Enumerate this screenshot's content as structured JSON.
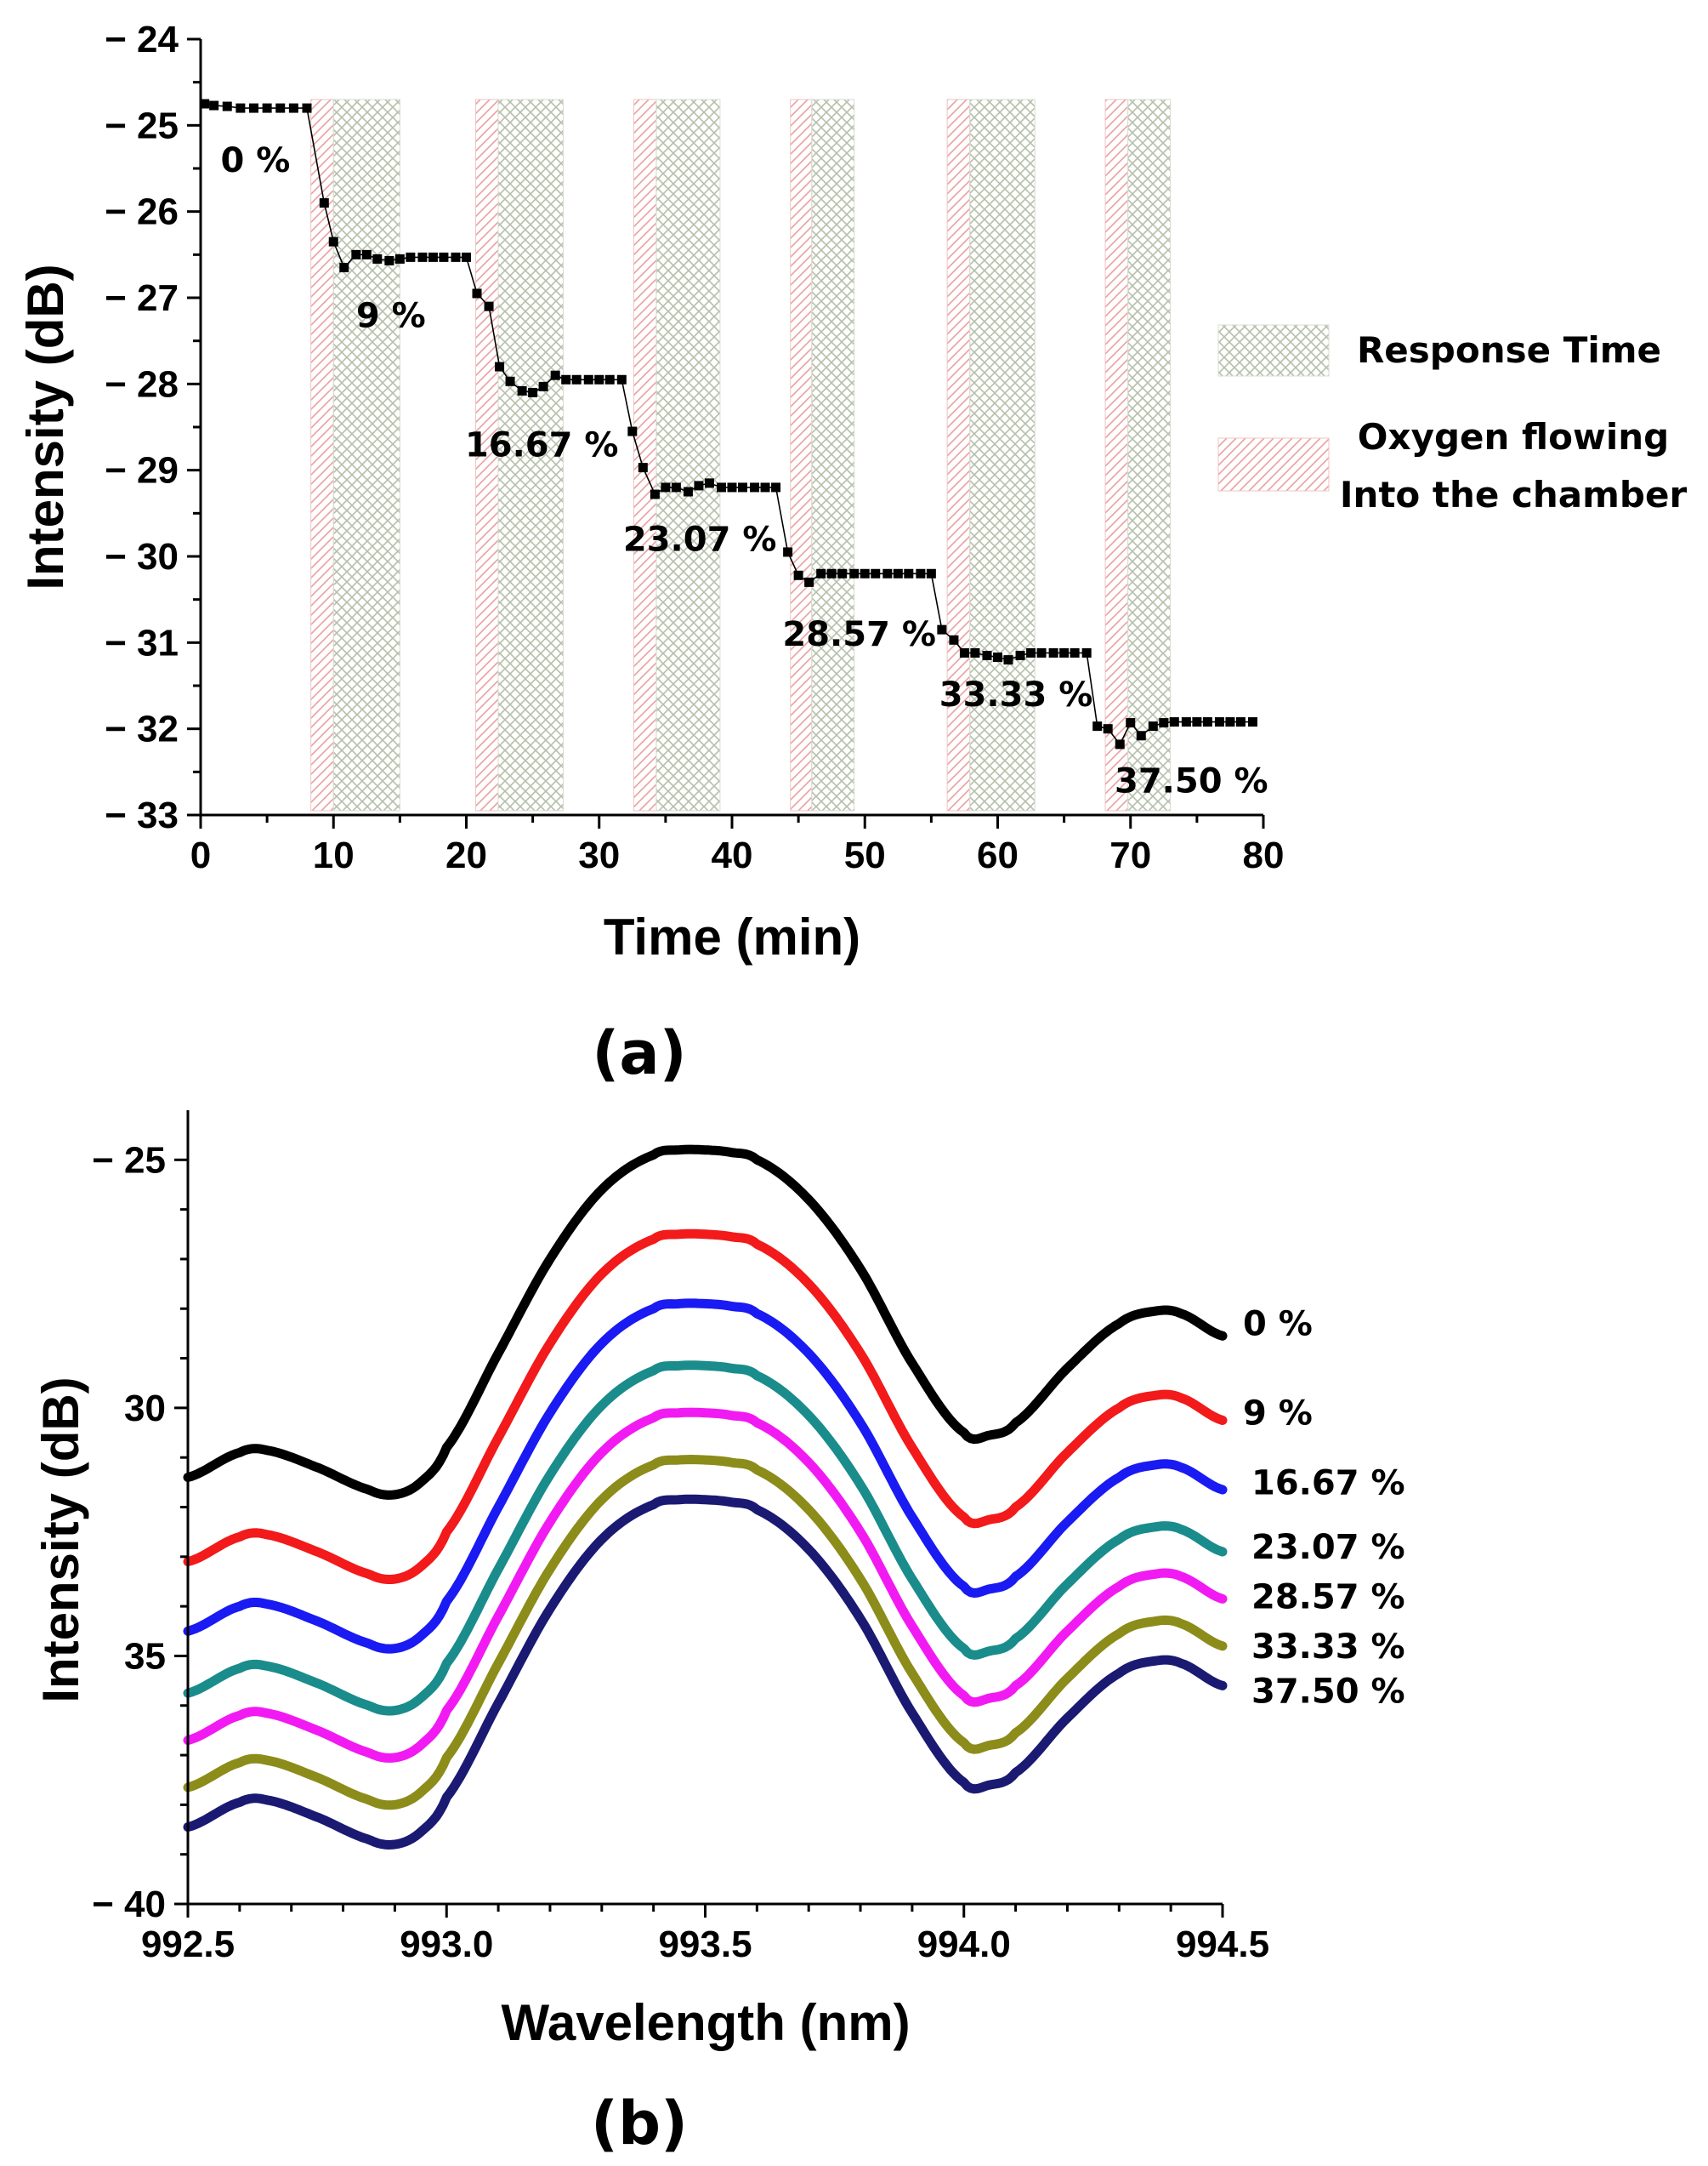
{
  "chart_data": [
    {
      "id": "a",
      "type": "line",
      "panel_label": "(a)",
      "xlabel": "Time (min)",
      "ylabel": "Intensity (dB)",
      "xlim": [
        0,
        80
      ],
      "ylim": [
        -33,
        -24
      ],
      "xticks": [
        0,
        10,
        20,
        30,
        40,
        50,
        60,
        70,
        80
      ],
      "xtick_labels": [
        "0",
        "10",
        "20",
        "30",
        "40",
        "50",
        "60",
        "70",
        "80"
      ],
      "yticks": [
        -24,
        -25,
        -26,
        -27,
        -28,
        -29,
        -30,
        -31,
        -32,
        -33
      ],
      "ytick_labels": [
        "− 24",
        "− 25",
        "− 26",
        "− 27",
        "− 28",
        "− 29",
        "− 30",
        "− 31",
        "− 32",
        "− 33"
      ],
      "series": [
        {
          "name": "Intensity",
          "color": "#000000",
          "marker": "square",
          "x": [
            0.3,
            1,
            2,
            3,
            4,
            5,
            6,
            7,
            8,
            9.3,
            10,
            10.8,
            11.7,
            12.5,
            13.3,
            14.2,
            15,
            15.8,
            16.7,
            17.5,
            18.3,
            19.2,
            20,
            20.8,
            21.7,
            22.5,
            23.3,
            24.2,
            25,
            25.8,
            26.7,
            27.5,
            28.3,
            29.2,
            30,
            30.8,
            31.7,
            32.5,
            33.3,
            34.2,
            35,
            35.8,
            36.7,
            37.5,
            38.3,
            39.2,
            40,
            40.8,
            41.7,
            42.5,
            43.3,
            44.2,
            45,
            45.8,
            46.7,
            47.5,
            48.3,
            49.2,
            50,
            50.8,
            51.7,
            52.5,
            53.3,
            54.2,
            55,
            55.8,
            56.7,
            57.5,
            58.3,
            59.2,
            60,
            60.8,
            61.7,
            62.5,
            63.3,
            64.2,
            65,
            65.8,
            66.7,
            67.5,
            68.3,
            69.2,
            70,
            70.8,
            71.7,
            72.5,
            73.3,
            74.2,
            75,
            75.8,
            76.7,
            77.5,
            78.3,
            79.2
          ],
          "y": [
            -24.75,
            -24.77,
            -24.78,
            -24.8,
            -24.8,
            -24.8,
            -24.8,
            -24.8,
            -24.8,
            -25.9,
            -26.35,
            -26.65,
            -26.5,
            -26.5,
            -26.55,
            -26.57,
            -26.55,
            -26.53,
            -26.53,
            -26.53,
            -26.53,
            -26.53,
            -26.53,
            -26.95,
            -27.1,
            -27.8,
            -27.97,
            -28.08,
            -28.1,
            -28.03,
            -27.9,
            -27.95,
            -27.95,
            -27.95,
            -27.95,
            -27.95,
            -27.95,
            -28.55,
            -28.97,
            -29.28,
            -29.2,
            -29.2,
            -29.25,
            -29.18,
            -29.15,
            -29.2,
            -29.2,
            -29.2,
            -29.2,
            -29.2,
            -29.2,
            -29.95,
            -30.22,
            -30.3,
            -30.2,
            -30.2,
            -30.2,
            -30.2,
            -30.2,
            -30.2,
            -30.2,
            -30.2,
            -30.2,
            -30.2,
            -30.2,
            -30.85,
            -30.97,
            -31.12,
            -31.12,
            -31.15,
            -31.17,
            -31.2,
            -31.15,
            -31.12,
            -31.12,
            -31.12,
            -31.12,
            -31.12,
            -31.12,
            -31.97,
            -32.0,
            -32.18,
            -31.93,
            -32.08,
            -31.97,
            -31.93,
            -31.92,
            -31.92,
            -31.92,
            -31.92,
            -31.92,
            -31.92,
            -31.92,
            -31.92
          ]
        }
      ],
      "oxygen_flow_bands": [
        [
          8.3,
          10.0
        ],
        [
          20.7,
          22.4
        ],
        [
          32.6,
          34.3
        ],
        [
          44.4,
          46.0
        ],
        [
          56.2,
          57.9
        ],
        [
          68.1,
          69.8
        ]
      ],
      "response_time_bands": [
        [
          10.0,
          15.0
        ],
        [
          22.4,
          27.3
        ],
        [
          34.3,
          39.1
        ],
        [
          46.0,
          49.2
        ],
        [
          57.9,
          62.8
        ],
        [
          69.8,
          73.0
        ]
      ],
      "legend": [
        {
          "label_lines": [
            "Response Time"
          ],
          "pattern": "crosshatch",
          "color": "#b5bfa9"
        },
        {
          "label_lines": [
            "Oxygen flowing",
            "Into the chamber"
          ],
          "pattern": "diagonal",
          "color": "#e9a0a0"
        }
      ],
      "annotations": [
        {
          "text": "0 %",
          "x": 1.5,
          "y": -25.4
        },
        {
          "text": "9 %",
          "x": 11.7,
          "y": -27.2
        },
        {
          "text": "16.67 %",
          "x": 19.9,
          "y": -28.7
        },
        {
          "text": "23.07 %",
          "x": 31.8,
          "y": -29.8
        },
        {
          "text": "28.57 %",
          "x": 43.8,
          "y": -30.9
        },
        {
          "text": "33.33 %",
          "x": 55.6,
          "y": -31.6
        },
        {
          "text": "37.50 %",
          "x": 68.8,
          "y": -32.6
        }
      ]
    },
    {
      "id": "b",
      "type": "line",
      "panel_label": "(b)",
      "xlabel": "Wavelength (nm)",
      "ylabel": "Intensity (dB)",
      "xlim": [
        992.5,
        994.5
      ],
      "ylim": [
        -40,
        -24
      ],
      "xticks": [
        992.5,
        993.0,
        993.5,
        994.0,
        994.5
      ],
      "xtick_labels": [
        "992.5",
        "993.0",
        "993.5",
        "994.0",
        "994.5"
      ],
      "yticks": [
        -25,
        -30,
        -35,
        -40
      ],
      "ytick_labels": [
        "− 25",
        "30",
        "35",
        "− 40"
      ],
      "series": [
        {
          "name": "0 %",
          "color": "#000000",
          "offset": -24.8
        },
        {
          "name": "9 %",
          "color": "#f21a1a",
          "offset": -26.5
        },
        {
          "name": "16.67 %",
          "color": "#1a1af2",
          "offset": -27.9
        },
        {
          "name": "23.07 %",
          "color": "#1a8c8c",
          "offset": -29.15
        },
        {
          "name": "28.57 %",
          "color": "#f21af2",
          "offset": -30.1
        },
        {
          "name": "33.33 %",
          "color": "#8c8c1a",
          "offset": -31.05
        },
        {
          "name": "37.50 %",
          "color": "#1a1a73",
          "offset": -31.85
        }
      ],
      "spectrum_shape": {
        "x": [
          992.5,
          992.6,
          992.65,
          992.75,
          992.85,
          992.9,
          992.95,
          993.0,
          993.1,
          993.2,
          993.3,
          993.4,
          993.45,
          993.5,
          993.55,
          993.6,
          993.7,
          993.8,
          993.9,
          994.0,
          994.05,
          994.1,
          994.2,
          994.3,
          994.37,
          994.42,
          994.5
        ],
        "dy": [
          -6.6,
          -6.1,
          -6.05,
          -6.4,
          -6.85,
          -6.95,
          -6.7,
          -6.0,
          -4.1,
          -2.2,
          -0.8,
          -0.1,
          0.0,
          0.0,
          -0.05,
          -0.2,
          -1.0,
          -2.4,
          -4.3,
          -5.7,
          -5.75,
          -5.5,
          -4.4,
          -3.5,
          -3.25,
          -3.3,
          -3.75
        ]
      },
      "labels": [
        {
          "text": "0 %",
          "y": -28.3
        },
        {
          "text": "9 %",
          "y": -30.1
        },
        {
          "text": "16.67 %",
          "y": -31.5
        },
        {
          "text": "23.07 %",
          "y": -32.8
        },
        {
          "text": "28.57 %",
          "y": -33.8
        },
        {
          "text": "33.33 %",
          "y": -34.8
        },
        {
          "text": "37.50 %",
          "y": -35.7
        }
      ]
    }
  ]
}
